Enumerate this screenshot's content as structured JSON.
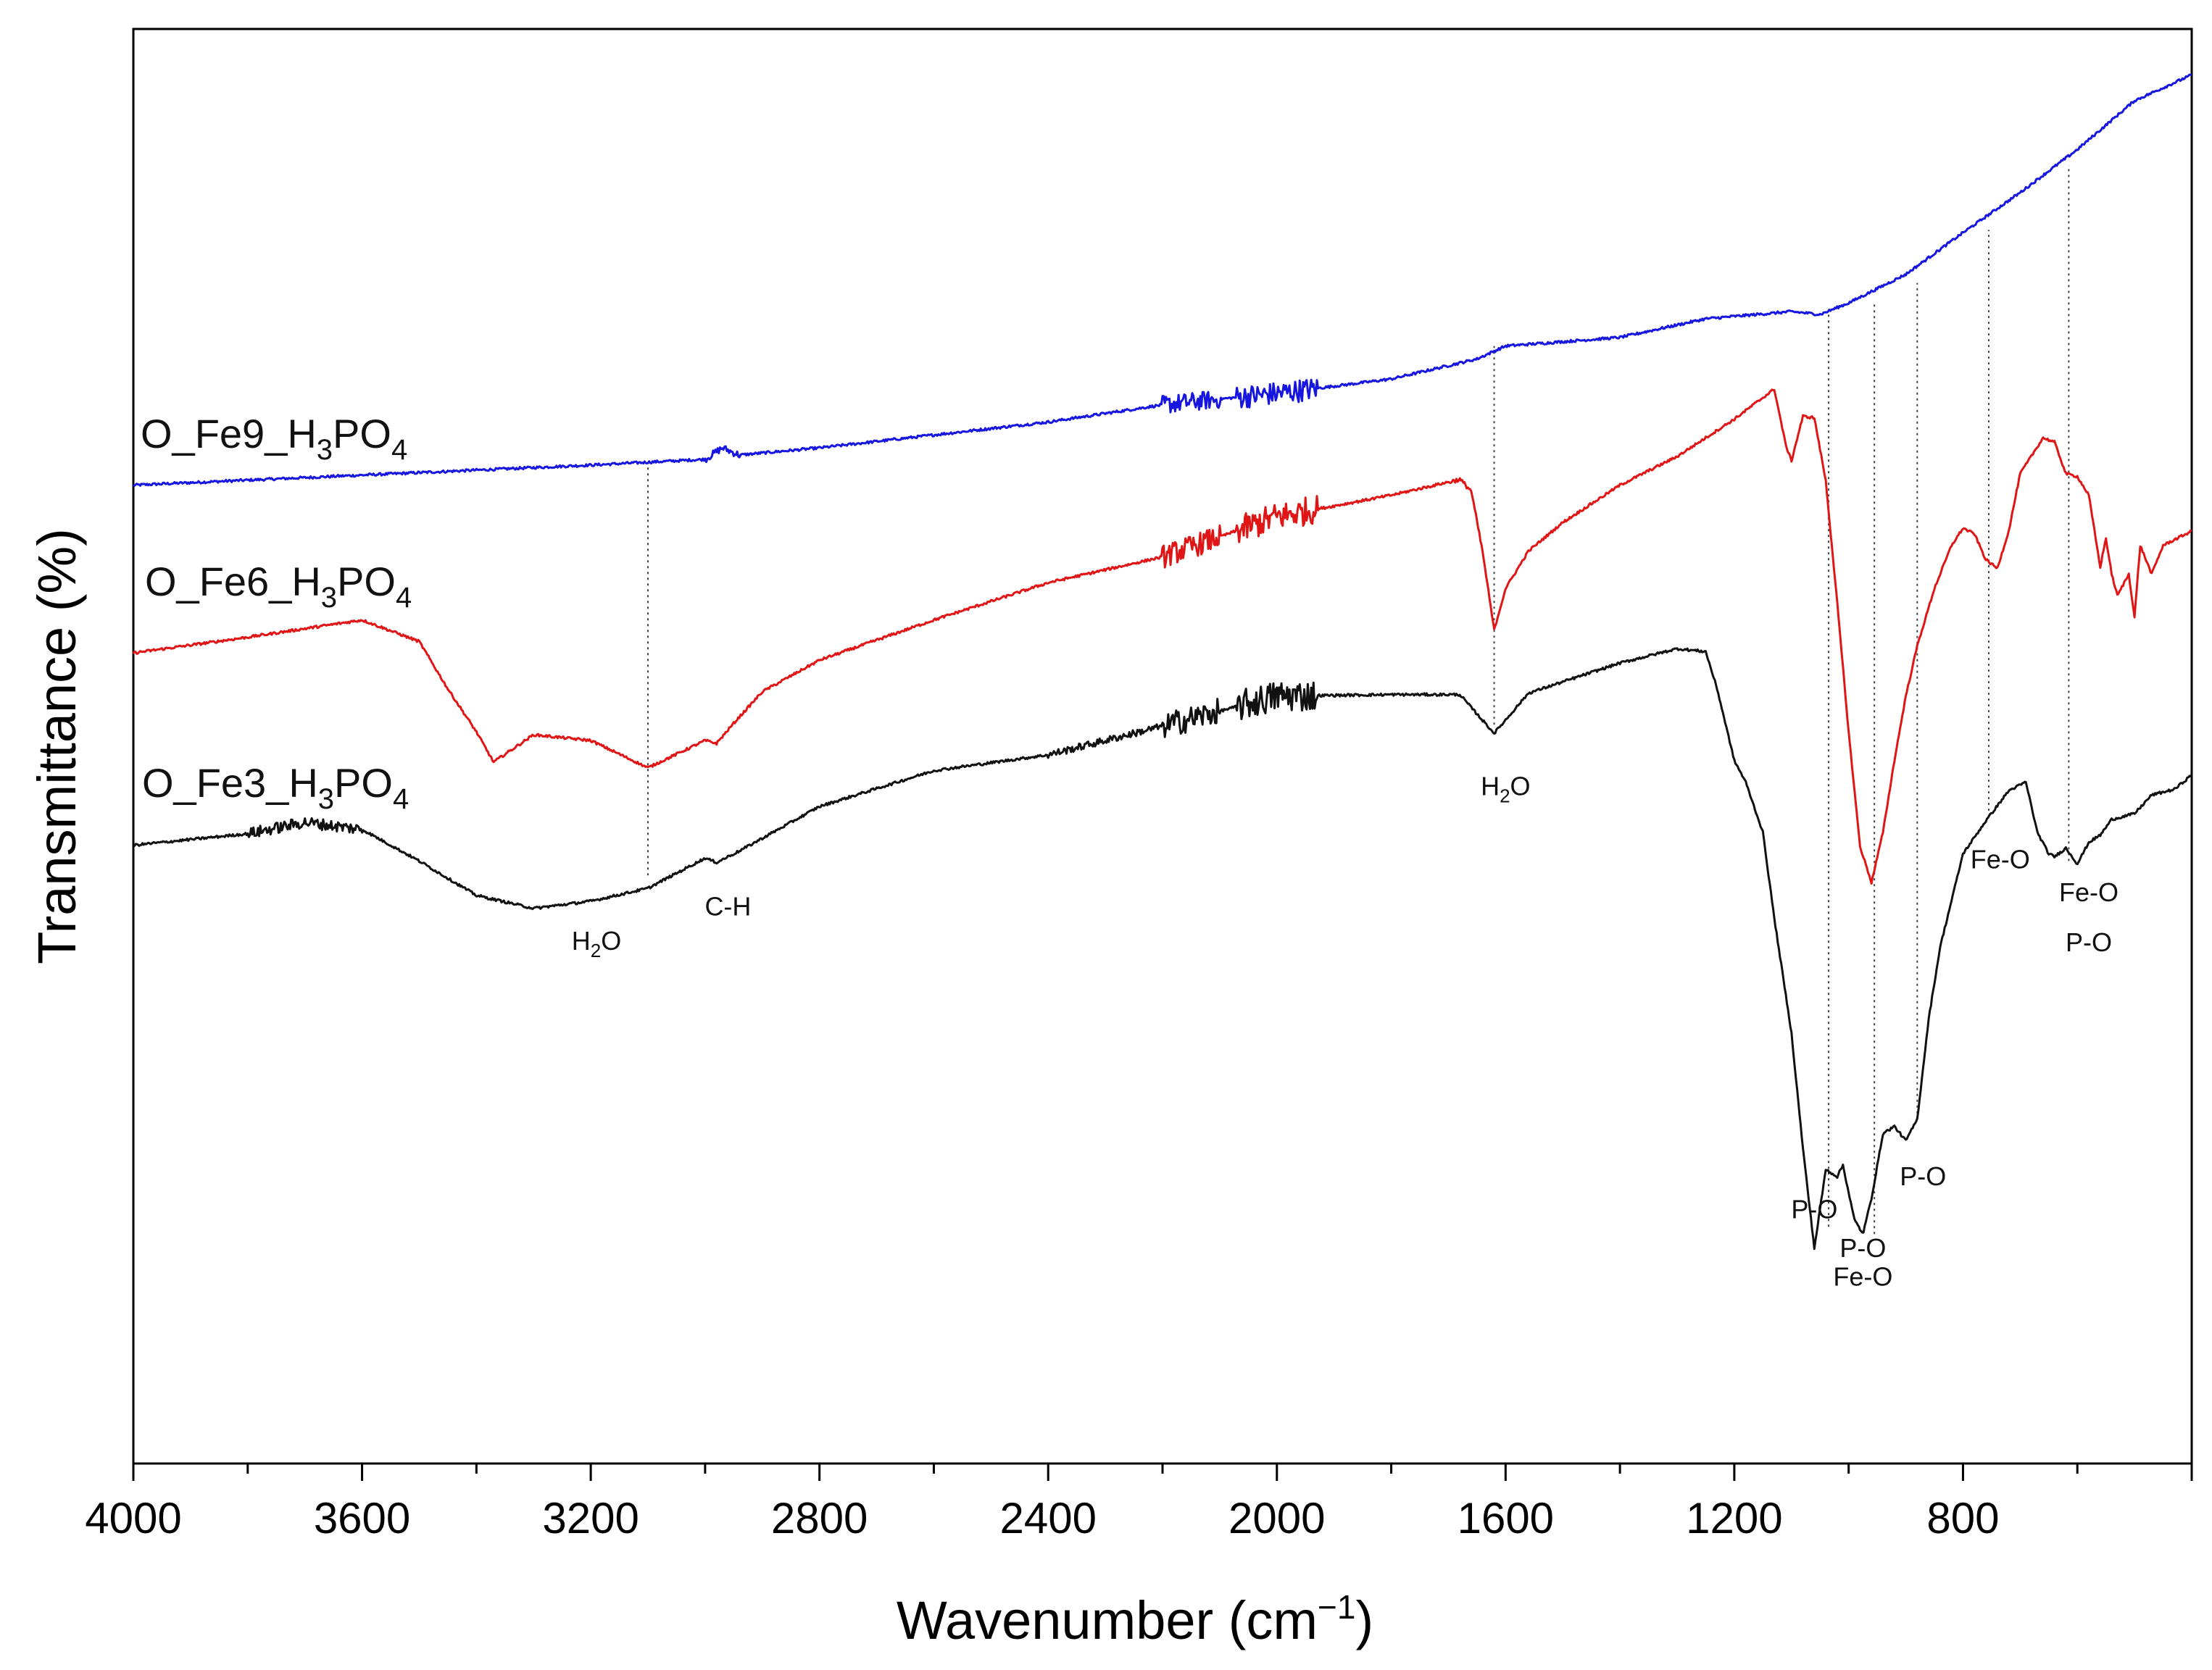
{
  "chart_data": {
    "type": "line",
    "title": "",
    "xlabel": "Wavenumber (cm",
    "xlabel_sup": "−1",
    "xlabel_close": ")",
    "ylabel": "Transmittance (%)",
    "xlim": [
      4000,
      400
    ],
    "x_reversed": true,
    "ylim": [
      0,
      100
    ],
    "y_ticks_shown": false,
    "x_ticks": [
      4000,
      3600,
      3200,
      2800,
      2400,
      2000,
      1600,
      1200,
      800
    ],
    "x_tick_labels": [
      "4000",
      "3600",
      "3200",
      "2800",
      "2400",
      "2000",
      "1600",
      "1200",
      "800"
    ],
    "grid": false,
    "legend": "inline labels at left",
    "series": [
      {
        "name": "O_Fe9_H3PO4",
        "label_main": "O_Fe9_H",
        "label_sub1": "3",
        "label_mid": "PO",
        "label_sub2": "4",
        "color": "#1616e0",
        "noise": [
          [
            2200,
            2100,
            1.3
          ],
          [
            2070,
            1930,
            1.6
          ],
          [
            3000,
            2940,
            0.5
          ]
        ],
        "points": [
          [
            4000,
            68.2
          ],
          [
            3600,
            68.9
          ],
          [
            3200,
            69.6
          ],
          [
            3000,
            70.0
          ],
          [
            2970,
            70.8
          ],
          [
            2940,
            70.3
          ],
          [
            2800,
            70.8
          ],
          [
            2400,
            72.6
          ],
          [
            2200,
            73.8
          ],
          [
            2000,
            74.6
          ],
          [
            1800,
            75.6
          ],
          [
            1650,
            77.0
          ],
          [
            1600,
            77.9
          ],
          [
            1400,
            78.5
          ],
          [
            1250,
            79.8
          ],
          [
            1100,
            80.3
          ],
          [
            1050,
            80.1
          ],
          [
            1000,
            80.9
          ],
          [
            900,
            82.9
          ],
          [
            800,
            85.8
          ],
          [
            700,
            88.6
          ],
          [
            600,
            91.6
          ],
          [
            500,
            95.0
          ],
          [
            400,
            96.8
          ]
        ]
      },
      {
        "name": "O_Fe6_H3PO4",
        "label_main": "O_Fe6_H",
        "label_sub1": "3",
        "label_mid": "PO",
        "label_sub2": "4",
        "color": "#e01616",
        "noise": [
          [
            2200,
            2100,
            1.6
          ],
          [
            2070,
            1930,
            2.0
          ],
          [
            1700,
            1640,
            0.3
          ]
        ],
        "points": [
          [
            4000,
            56.5
          ],
          [
            3800,
            57.6
          ],
          [
            3600,
            58.8
          ],
          [
            3500,
            57.3
          ],
          [
            3450,
            54.0
          ],
          [
            3400,
            51.0
          ],
          [
            3370,
            48.9
          ],
          [
            3300,
            50.8
          ],
          [
            3200,
            50.4
          ],
          [
            3100,
            48.5
          ],
          [
            3000,
            50.4
          ],
          [
            2980,
            50.2
          ],
          [
            2950,
            51.6
          ],
          [
            2900,
            53.8
          ],
          [
            2800,
            56.0
          ],
          [
            2600,
            58.8
          ],
          [
            2400,
            61.4
          ],
          [
            2200,
            63.2
          ],
          [
            2000,
            66.0
          ],
          [
            1800,
            67.5
          ],
          [
            1680,
            68.6
          ],
          [
            1660,
            67.8
          ],
          [
            1640,
            63.5
          ],
          [
            1620,
            58.1
          ],
          [
            1600,
            61.0
          ],
          [
            1560,
            63.6
          ],
          [
            1500,
            65.6
          ],
          [
            1400,
            68.2
          ],
          [
            1300,
            70.2
          ],
          [
            1200,
            72.8
          ],
          [
            1130,
            74.9
          ],
          [
            1110,
            71.0
          ],
          [
            1100,
            69.9
          ],
          [
            1080,
            73.0
          ],
          [
            1060,
            72.9
          ],
          [
            1040,
            68.5
          ],
          [
            1020,
            60.0
          ],
          [
            1000,
            51.0
          ],
          [
            980,
            43.0
          ],
          [
            960,
            40.5
          ],
          [
            940,
            44.0
          ],
          [
            920,
            49.0
          ],
          [
            900,
            53.5
          ],
          [
            880,
            57.0
          ],
          [
            850,
            61.0
          ],
          [
            820,
            64.0
          ],
          [
            800,
            65.2
          ],
          [
            780,
            64.8
          ],
          [
            760,
            63.0
          ],
          [
            740,
            62.4
          ],
          [
            720,
            65.0
          ],
          [
            700,
            69.0
          ],
          [
            660,
            71.5
          ],
          [
            640,
            71.2
          ],
          [
            620,
            69.0
          ],
          [
            600,
            68.8
          ],
          [
            580,
            67.5
          ],
          [
            560,
            62.5
          ],
          [
            550,
            64.5
          ],
          [
            540,
            62.0
          ],
          [
            530,
            60.5
          ],
          [
            510,
            62.0
          ],
          [
            500,
            59.0
          ],
          [
            490,
            64.0
          ],
          [
            470,
            62.0
          ],
          [
            450,
            64.0
          ],
          [
            400,
            65.0
          ]
        ]
      },
      {
        "name": "O_Fe3_H3PO4",
        "label_main": "O_Fe3_H",
        "label_sub1": "3",
        "label_mid": "PO",
        "label_sub2": "4",
        "color": "#111111",
        "noise": [
          [
            2200,
            2100,
            1.8
          ],
          [
            2070,
            1930,
            2.2
          ],
          [
            3800,
            3600,
            0.8
          ],
          [
            2400,
            2200,
            0.5
          ]
        ],
        "points": [
          [
            4000,
            43.1
          ],
          [
            3800,
            43.9
          ],
          [
            3700,
            44.7
          ],
          [
            3600,
            44.2
          ],
          [
            3500,
            42.0
          ],
          [
            3400,
            39.6
          ],
          [
            3300,
            38.7
          ],
          [
            3200,
            39.2
          ],
          [
            3100,
            40.1
          ],
          [
            3000,
            42.2
          ],
          [
            2980,
            41.9
          ],
          [
            2940,
            42.7
          ],
          [
            2800,
            45.8
          ],
          [
            2600,
            48.3
          ],
          [
            2400,
            49.4
          ],
          [
            2200,
            51.4
          ],
          [
            2000,
            53.5
          ],
          [
            1800,
            53.6
          ],
          [
            1680,
            53.6
          ],
          [
            1620,
            50.9
          ],
          [
            1560,
            53.7
          ],
          [
            1400,
            55.8
          ],
          [
            1300,
            56.8
          ],
          [
            1250,
            56.6
          ],
          [
            1230,
            54.0
          ],
          [
            1200,
            49.0
          ],
          [
            1180,
            47.5
          ],
          [
            1150,
            44.0
          ],
          [
            1130,
            38.0
          ],
          [
            1100,
            30.0
          ],
          [
            1080,
            22.0
          ],
          [
            1060,
            15.0
          ],
          [
            1040,
            20.5
          ],
          [
            1020,
            20.0
          ],
          [
            1010,
            20.8
          ],
          [
            990,
            17.0
          ],
          [
            975,
            16.0
          ],
          [
            960,
            18.5
          ],
          [
            940,
            23.0
          ],
          [
            920,
            23.5
          ],
          [
            900,
            22.5
          ],
          [
            880,
            24.0
          ],
          [
            860,
            31.0
          ],
          [
            840,
            36.0
          ],
          [
            800,
            42.5
          ],
          [
            760,
            44.8
          ],
          [
            720,
            46.9
          ],
          [
            690,
            47.5
          ],
          [
            670,
            44.0
          ],
          [
            650,
            42.5
          ],
          [
            640,
            42.3
          ],
          [
            620,
            42.9
          ],
          [
            600,
            41.8
          ],
          [
            580,
            43.3
          ],
          [
            560,
            43.8
          ],
          [
            540,
            44.9
          ],
          [
            500,
            45.3
          ],
          [
            470,
            46.6
          ],
          [
            430,
            47.0
          ],
          [
            400,
            48.0
          ]
        ]
      }
    ],
    "guide_lines": [
      {
        "x": 3100,
        "y_from": 41.0,
        "y_to": 69.6
      },
      {
        "x": 1620,
        "y_from": 51.5,
        "y_to": 77.9
      },
      {
        "x": 1035,
        "y_from": 16.5,
        "y_to": 80.1
      },
      {
        "x": 955,
        "y_from": 16.0,
        "y_to": 80.9
      },
      {
        "x": 880,
        "y_from": 24.0,
        "y_to": 82.3
      },
      {
        "x": 755,
        "y_from": 45.5,
        "y_to": 86.0
      },
      {
        "x": 615,
        "y_from": 42.0,
        "y_to": 90.5
      }
    ],
    "annotations": [
      {
        "text": "H",
        "sub": "2",
        "tail": "O",
        "x": 3190,
        "y": 35.8
      },
      {
        "text": "C-H",
        "sub": "",
        "tail": "",
        "x": 2960,
        "y": 38.2
      },
      {
        "text": "H",
        "sub": "2",
        "tail": "O",
        "x": 1600,
        "y": 46.6
      },
      {
        "text": "P-O",
        "sub": "",
        "tail": "",
        "x": 1060,
        "y": 17.1
      },
      {
        "text": "P-O",
        "sub": "",
        "tail": "",
        "x": 975,
        "y": 14.4
      },
      {
        "text": "Fe-O",
        "sub": "",
        "tail": "",
        "x": 975,
        "y": 12.4
      },
      {
        "text": "P-O",
        "sub": "",
        "tail": "",
        "x": 870,
        "y": 19.4
      },
      {
        "text": "Fe-O",
        "sub": "",
        "tail": "",
        "x": 735,
        "y": 41.5
      },
      {
        "text": "Fe-O",
        "sub": "",
        "tail": "",
        "x": 580,
        "y": 39.2
      },
      {
        "text": "P-O",
        "sub": "",
        "tail": "",
        "x": 580,
        "y": 35.7
      }
    ]
  }
}
